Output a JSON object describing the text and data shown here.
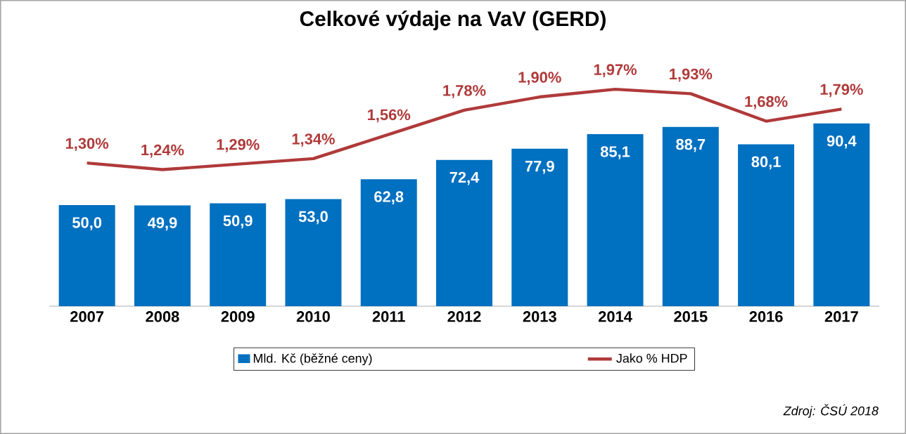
{
  "chart_data": {
    "type": "bar",
    "title": "Celkové výdaje na VaV (GERD)",
    "categories": [
      "2007",
      "2008",
      "2009",
      "2010",
      "2011",
      "2012",
      "2013",
      "2014",
      "2015",
      "2016",
      "2017"
    ],
    "series": [
      {
        "name": "Mld. Kč (běžné ceny)",
        "color": "#0070c0",
        "values": [
          50.0,
          49.9,
          50.9,
          53.0,
          62.8,
          72.4,
          77.9,
          85.1,
          88.7,
          80.1,
          90.4
        ],
        "value_labels": [
          "50,0",
          "49,9",
          "50,9",
          "53,0",
          "62,8",
          "72,4",
          "77,9",
          "85,1",
          "88,7",
          "80,1",
          "90,4"
        ]
      },
      {
        "name": "Jako % HDP",
        "type": "line",
        "axis": "y2",
        "color": "#b03a3a",
        "values": [
          1.3,
          1.24,
          1.29,
          1.34,
          1.56,
          1.78,
          1.9,
          1.97,
          1.93,
          1.68,
          1.79
        ],
        "value_labels": [
          "1,30%",
          "1,24%",
          "1,29%",
          "1,34%",
          "1,56%",
          "1,78%",
          "1,90%",
          "1,97%",
          "1,93%",
          "1,68%",
          "1,79%"
        ]
      }
    ],
    "tick_labels": "x",
    "legend": "bottom",
    "annotations": [
      "Zdroj: ČSÚ 2018"
    ]
  }
}
